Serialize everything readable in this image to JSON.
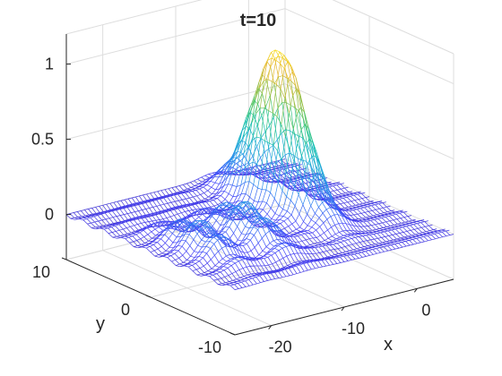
{
  "chart_data": {
    "type": "surface",
    "style": "3-D mesh (wireframe), colormap parula",
    "title": "t=10",
    "xlabel": "x",
    "ylabel": "y",
    "zlabel": "",
    "xlim": [
      -25,
      5
    ],
    "ylim": [
      -10,
      10
    ],
    "zlim": [
      -0.3,
      1.2
    ],
    "x_ticks": [
      {
        "value": -20,
        "label": "-20"
      },
      {
        "value": -10,
        "label": "-10"
      },
      {
        "value": 0,
        "label": "0"
      }
    ],
    "y_ticks": [
      {
        "value": -10,
        "label": "-10"
      },
      {
        "value": 0,
        "label": "0"
      },
      {
        "value": 10,
        "label": "10"
      }
    ],
    "z_ticks": [
      {
        "value": 0,
        "label": "0"
      },
      {
        "value": 0.5,
        "label": "0.5"
      },
      {
        "value": 1,
        "label": "1"
      }
    ],
    "grid": true,
    "colormap": [
      "#3e26a8",
      "#4743f8",
      "#2e86f0",
      "#1fa9d8",
      "#12bfb0",
      "#4cc76e",
      "#a5be3f",
      "#e6b82f",
      "#f9e11f"
    ],
    "surface_features": [
      {
        "kind": "peak",
        "x": -5,
        "y": 2,
        "z": 1.05,
        "x_width": 1.6,
        "y_width": 3.0
      },
      {
        "kind": "trailing_ridge",
        "x_from": -25,
        "x_to": -8,
        "y_center": -2,
        "z_max": 0.25
      },
      {
        "kind": "transverse_ripples",
        "y_wavelength": 2.5
      }
    ],
    "grid_resolution": {
      "x_samples": 61,
      "y_samples": 41
    }
  }
}
